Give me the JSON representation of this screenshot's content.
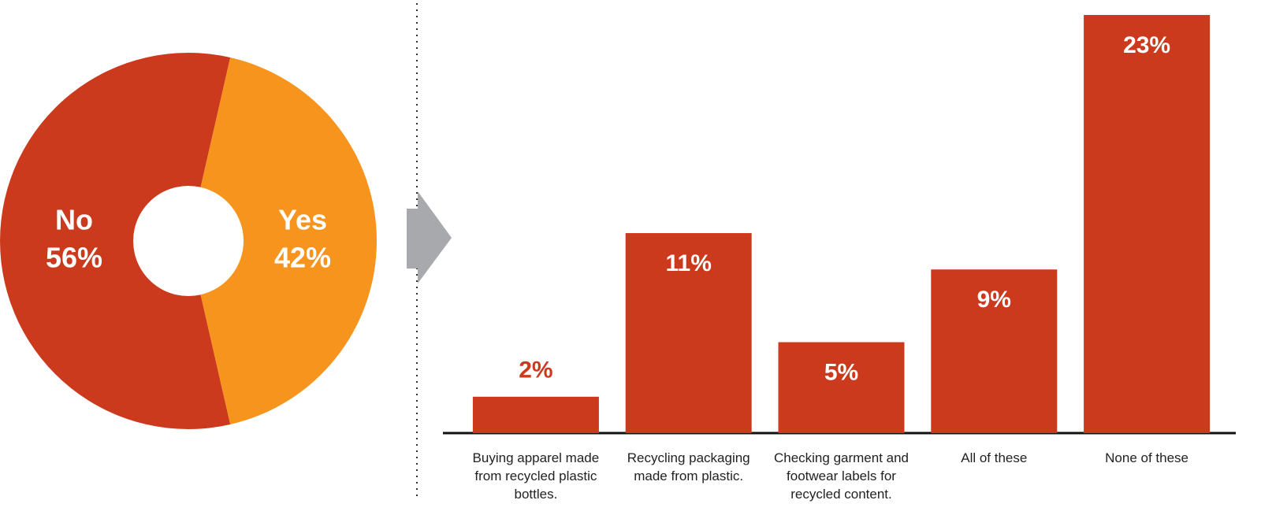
{
  "chart_data": [
    {
      "type": "pie",
      "categories": [
        "No",
        "Yes"
      ],
      "values": [
        56,
        42
      ],
      "value_labels": [
        "56%",
        "42%"
      ],
      "colors": [
        "#cc3a1e",
        "#f7941d"
      ]
    },
    {
      "type": "bar",
      "categories": [
        "Buying apparel made from recycled plastic bottles.",
        "Recycling packaging made from plastic.",
        "Checking garment and footwear labels for recycled content.",
        "All of these",
        "None of these"
      ],
      "values": [
        2,
        11,
        5,
        9,
        23
      ],
      "value_labels": [
        "2%",
        "11%",
        "5%",
        "9%",
        "23%"
      ],
      "color": "#cc3a1e"
    }
  ]
}
